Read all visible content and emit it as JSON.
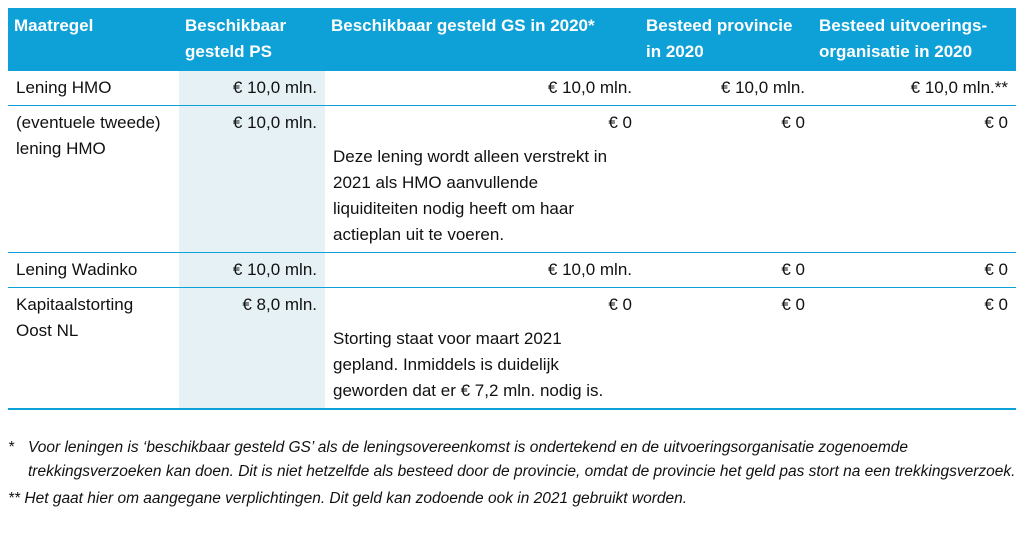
{
  "table": {
    "headers": [
      "Maatregel",
      "Beschikbaar gesteld PS",
      "Beschikbaar gesteld GS in 2020*",
      "Besteed provincie in 2020",
      "Besteed uitvoerings-organisatie in 2020"
    ],
    "rows": [
      {
        "maatregel": "Lening HMO",
        "ps": "€ 10,0 mln.",
        "gs": "€ 10,0 mln.",
        "gs_note": "",
        "provincie": "€ 10,0 mln.",
        "uitvoering": "€ 10,0 mln.**"
      },
      {
        "maatregel": "(eventuele tweede) lening HMO",
        "ps": "€ 10,0 mln.",
        "gs": "€ 0",
        "gs_note": "Deze lening wordt alleen verstrekt in 2021 als HMO aanvullende liquiditeiten nodig heeft om haar actieplan uit te voeren.",
        "provincie": "€ 0",
        "uitvoering": "€ 0"
      },
      {
        "maatregel": "Lening Wadinko",
        "ps": "€ 10,0 mln.",
        "gs": "€ 10,0 mln.",
        "gs_note": "",
        "provincie": "€ 0",
        "uitvoering": "€ 0"
      },
      {
        "maatregel": "Kapitaalstorting Oost NL",
        "ps": "€ 8,0 mln.",
        "gs": "€ 0",
        "gs_note": "Storting staat voor maart 2021 gepland. Inmiddels is duidelijk geworden dat er € 7,2 mln. nodig is.",
        "provincie": "€ 0",
        "uitvoering": "€ 0"
      }
    ]
  },
  "footnotes": [
    {
      "mark": "*",
      "text": "Voor leningen is ‘beschikbaar gesteld GS’ als de leningsovereenkomst is ondertekend en de uitvoeringsorganisatie zogenoemde trekkingsverzoeken kan doen. Dit is niet hetzelfde als besteed door de provincie, omdat de provincie het geld pas stort na een trekkingsverzoek."
    },
    {
      "mark": "**",
      "text": "Het gaat hier om aangegane verplichtingen. Dit geld kan zodoende ook in 2021 gebruikt worden."
    }
  ],
  "colors": {
    "header_bg": "#0ea1d8",
    "ps_column_bg": "#e6f1f6",
    "rule": "#0ea1d8"
  }
}
